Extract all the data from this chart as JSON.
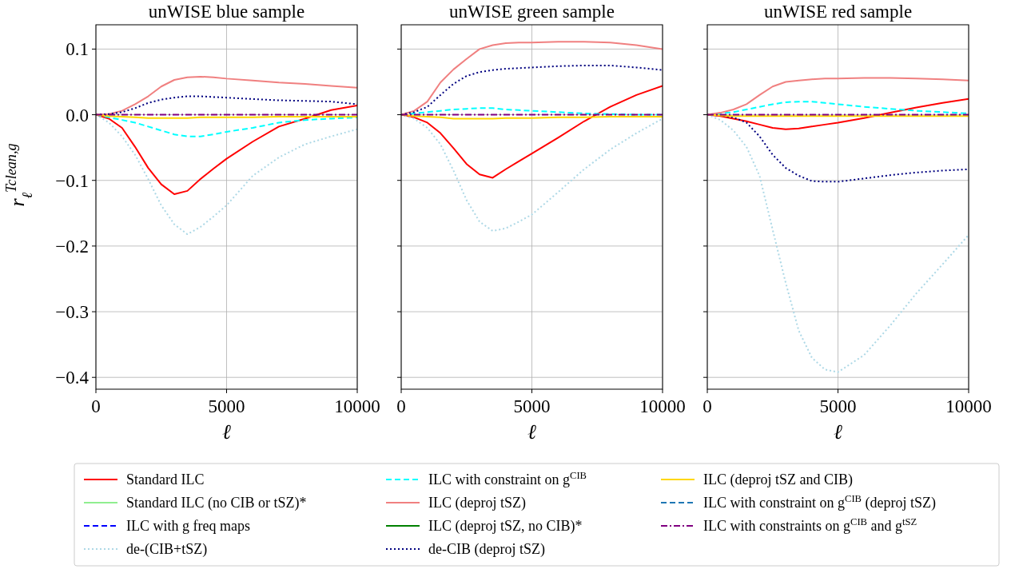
{
  "chart_data": [
    {
      "type": "line",
      "title": "unWISE blue sample",
      "xlabel": "ℓ",
      "ylabel": "r$_{ℓ}$$^{Tclean,g}$",
      "legend": "bottom",
      "grid": true,
      "xlim": [
        0,
        10000
      ],
      "xticks": [
        0,
        5000,
        10000
      ],
      "ylim": [
        -0.418,
        0.137
      ],
      "yticks": [
        {
          "value": -0.4,
          "label": "−0.4"
        },
        {
          "value": -0.3,
          "label": "−0.3"
        },
        {
          "value": -0.2,
          "label": "−0.2"
        },
        {
          "value": -0.1,
          "label": "−0.1"
        },
        {
          "value": 0,
          "label": "0.0"
        },
        {
          "value": 0.1,
          "label": "0.1"
        }
      ],
      "x": [
        0,
        500,
        1000,
        1500,
        2000,
        2500,
        3000,
        3500,
        4000,
        4500,
        5000,
        6000,
        7000,
        8000,
        9000,
        10000
      ],
      "series": [
        {
          "name": "Standard ILC",
          "color": "#ff0000",
          "line_style": "solid",
          "values": [
            0,
            -0.006,
            -0.02,
            -0.049,
            -0.081,
            -0.106,
            -0.121,
            -0.116,
            -0.098,
            -0.082,
            -0.067,
            -0.041,
            -0.018,
            -0.006,
            0.007,
            0.014
          ]
        },
        {
          "name": "Standard ILC (no CIB or tSZ)*",
          "color": "#90ee90",
          "line_style": "solid",
          "values": [
            null,
            null,
            null,
            null,
            null,
            null,
            null,
            null,
            null,
            null,
            null,
            null,
            null,
            null,
            null,
            null
          ]
        },
        {
          "name": "ILC with g freq maps",
          "color": "#0000ff",
          "line_style": "dashed",
          "values": [
            null,
            null,
            null,
            null,
            null,
            null,
            null,
            null,
            null,
            null,
            null,
            null,
            null,
            null,
            null,
            null
          ]
        },
        {
          "name": "de-(CIB+tSZ)",
          "color": "#add8e6",
          "line_style": "dotted",
          "values": [
            0,
            -0.012,
            -0.033,
            -0.061,
            -0.098,
            -0.138,
            -0.167,
            -0.182,
            -0.171,
            -0.155,
            -0.138,
            -0.093,
            -0.065,
            -0.045,
            -0.033,
            -0.022
          ]
        },
        {
          "name": "ILC with constraint on g$^{CIB}$",
          "color": "#00ffff",
          "line_style": "dashed",
          "values": [
            0,
            -0.004,
            -0.008,
            -0.012,
            -0.018,
            -0.024,
            -0.03,
            -0.033,
            -0.033,
            -0.03,
            -0.026,
            -0.02,
            -0.012,
            -0.008,
            -0.006,
            -0.004
          ]
        },
        {
          "name": "ILC (deproj tSZ)",
          "color": "#f08080",
          "line_style": "solid",
          "values": [
            0,
            0.001,
            0.006,
            0.016,
            0.028,
            0.043,
            0.053,
            0.057,
            0.058,
            0.057,
            0.055,
            0.052,
            0.049,
            0.047,
            0.044,
            0.041
          ]
        },
        {
          "name": "ILC (deproj tSZ, no CIB)*",
          "color": "#008000",
          "line_style": "solid",
          "values": [
            null,
            null,
            null,
            null,
            null,
            null,
            null,
            null,
            null,
            null,
            null,
            null,
            null,
            null,
            null,
            null
          ]
        },
        {
          "name": "de-CIB (deproj tSZ)",
          "color": "#000080",
          "line_style": "dotted",
          "values": [
            0,
            0.001,
            0.004,
            0.01,
            0.018,
            0.023,
            0.026,
            0.028,
            0.028,
            0.027,
            0.026,
            0.024,
            0.022,
            0.021,
            0.02,
            0.016
          ]
        },
        {
          "name": "ILC (deproj tSZ and CIB)",
          "color": "#ffd700",
          "line_style": "solid",
          "values": [
            0,
            -0.002,
            -0.003,
            -0.004,
            -0.005,
            -0.005,
            -0.005,
            -0.005,
            -0.004,
            -0.004,
            -0.004,
            -0.004,
            -0.003,
            -0.003,
            -0.003,
            -0.003
          ]
        },
        {
          "name": "ILC with constraint on g$^{CIB}$ (deproj tSZ)",
          "color": "#1f77b4",
          "line_style": "dashed",
          "values": [
            null,
            null,
            null,
            null,
            null,
            null,
            null,
            null,
            null,
            null,
            null,
            null,
            null,
            null,
            null,
            null
          ]
        },
        {
          "name": "ILC with constraints on g$^{CIB}$ and g$^{tSZ}$",
          "color": "#800080",
          "line_style": "dashdot",
          "values": [
            0,
            0,
            0,
            0,
            0,
            0,
            0,
            0,
            0,
            0,
            0,
            0,
            0,
            0,
            0,
            0
          ]
        }
      ]
    },
    {
      "type": "line",
      "title": "unWISE green sample",
      "xlabel": "ℓ",
      "grid": true,
      "tick_labels": "x",
      "xlim": [
        0,
        10000
      ],
      "xticks": [
        0,
        5000,
        10000
      ],
      "ylim": [
        -0.418,
        0.137
      ],
      "yticks": [
        -0.4,
        -0.3,
        -0.2,
        -0.1,
        0,
        0.1
      ],
      "x": [
        0,
        500,
        1000,
        1500,
        2000,
        2500,
        3000,
        3500,
        4000,
        4500,
        5000,
        6000,
        7000,
        8000,
        9000,
        10000
      ],
      "series": [
        {
          "color": "#ff0000",
          "line_style": "solid",
          "values": [
            0,
            -0.004,
            -0.012,
            -0.028,
            -0.051,
            -0.075,
            -0.091,
            -0.096,
            -0.083,
            -0.071,
            -0.059,
            -0.035,
            -0.01,
            0.012,
            0.03,
            0.044
          ]
        },
        {
          "color": "#90ee90",
          "line_style": "solid",
          "values": [
            null,
            null,
            null,
            null,
            null,
            null,
            null,
            null,
            null,
            null,
            null,
            null,
            null,
            null,
            null,
            null
          ]
        },
        {
          "color": "#0000ff",
          "line_style": "dashed",
          "values": [
            null,
            null,
            null,
            null,
            null,
            null,
            null,
            null,
            null,
            null,
            null,
            null,
            null,
            null,
            null,
            null
          ]
        },
        {
          "color": "#add8e6",
          "line_style": "dotted",
          "values": [
            0,
            -0.006,
            -0.02,
            -0.045,
            -0.085,
            -0.13,
            -0.163,
            -0.177,
            -0.173,
            -0.163,
            -0.152,
            -0.118,
            -0.083,
            -0.053,
            -0.028,
            -0.006
          ]
        },
        {
          "color": "#00ffff",
          "line_style": "dashed",
          "values": [
            0,
            0.002,
            0.004,
            0.006,
            0.008,
            0.009,
            0.01,
            0.01,
            0.008,
            0.007,
            0.006,
            0.004,
            0.002,
            0.001,
            0,
            0
          ]
        },
        {
          "color": "#f08080",
          "line_style": "solid",
          "values": [
            0,
            0.006,
            0.02,
            0.049,
            0.069,
            0.085,
            0.1,
            0.106,
            0.109,
            0.11,
            0.11,
            0.111,
            0.111,
            0.11,
            0.106,
            0.1
          ]
        },
        {
          "color": "#008000",
          "line_style": "solid",
          "values": [
            null,
            null,
            null,
            null,
            null,
            null,
            null,
            null,
            null,
            null,
            null,
            null,
            null,
            null,
            null,
            null
          ]
        },
        {
          "color": "#000080",
          "line_style": "dotted",
          "values": [
            0,
            0.004,
            0.012,
            0.03,
            0.047,
            0.059,
            0.065,
            0.068,
            0.07,
            0.071,
            0.072,
            0.074,
            0.075,
            0.075,
            0.072,
            0.068
          ]
        },
        {
          "color": "#ffd700",
          "line_style": "solid",
          "values": [
            0,
            -0.002,
            -0.003,
            -0.004,
            -0.006,
            -0.006,
            -0.006,
            -0.006,
            -0.005,
            -0.005,
            -0.005,
            -0.004,
            -0.004,
            -0.003,
            -0.003,
            -0.003
          ]
        },
        {
          "color": "#1f77b4",
          "line_style": "dashed",
          "values": [
            null,
            null,
            null,
            null,
            null,
            null,
            null,
            null,
            null,
            null,
            null,
            null,
            null,
            null,
            null,
            null
          ]
        },
        {
          "color": "#800080",
          "line_style": "dashdot",
          "values": [
            0,
            0,
            0,
            0,
            0,
            0,
            0,
            0,
            0,
            0,
            0,
            0,
            0,
            0,
            0,
            0
          ]
        }
      ]
    },
    {
      "type": "line",
      "title": "unWISE red sample",
      "xlabel": "ℓ",
      "grid": true,
      "tick_labels": "x",
      "xlim": [
        0,
        10000
      ],
      "xticks": [
        0,
        5000,
        10000
      ],
      "ylim": [
        -0.418,
        0.137
      ],
      "yticks": [
        -0.4,
        -0.3,
        -0.2,
        -0.1,
        0,
        0.1
      ],
      "x": [
        0,
        500,
        1000,
        1500,
        2000,
        2500,
        3000,
        3500,
        4000,
        4500,
        5000,
        6000,
        7000,
        8000,
        9000,
        10000
      ],
      "series": [
        {
          "color": "#ff0000",
          "line_style": "solid",
          "values": [
            0,
            -0.002,
            -0.006,
            -0.01,
            -0.015,
            -0.02,
            -0.022,
            -0.021,
            -0.018,
            -0.015,
            -0.012,
            -0.005,
            0.003,
            0.011,
            0.018,
            0.024
          ]
        },
        {
          "color": "#90ee90",
          "line_style": "solid",
          "values": [
            null,
            null,
            null,
            null,
            null,
            null,
            null,
            null,
            null,
            null,
            null,
            null,
            null,
            null,
            null,
            null
          ]
        },
        {
          "color": "#0000ff",
          "line_style": "dashed",
          "values": [
            null,
            null,
            null,
            null,
            null,
            null,
            null,
            null,
            null,
            null,
            null,
            null,
            null,
            null,
            null,
            null
          ]
        },
        {
          "color": "#add8e6",
          "line_style": "dotted",
          "values": [
            0,
            -0.008,
            -0.024,
            -0.049,
            -0.093,
            -0.175,
            -0.256,
            -0.329,
            -0.37,
            -0.388,
            -0.392,
            -0.366,
            -0.321,
            -0.272,
            -0.228,
            -0.183
          ]
        },
        {
          "color": "#00ffff",
          "line_style": "dashed",
          "values": [
            0,
            0.002,
            0.004,
            0.008,
            0.012,
            0.016,
            0.019,
            0.02,
            0.02,
            0.018,
            0.016,
            0.012,
            0.009,
            0.006,
            0.004,
            0.002
          ]
        },
        {
          "color": "#f08080",
          "line_style": "solid",
          "values": [
            0,
            0.003,
            0.008,
            0.016,
            0.03,
            0.043,
            0.05,
            0.052,
            0.054,
            0.055,
            0.055,
            0.056,
            0.056,
            0.055,
            0.054,
            0.052
          ]
        },
        {
          "color": "#008000",
          "line_style": "solid",
          "values": [
            null,
            null,
            null,
            null,
            null,
            null,
            null,
            null,
            null,
            null,
            null,
            null,
            null,
            null,
            null,
            null
          ]
        },
        {
          "color": "#000080",
          "line_style": "dotted",
          "values": [
            0,
            -0.001,
            -0.004,
            -0.012,
            -0.033,
            -0.061,
            -0.081,
            -0.093,
            -0.101,
            -0.102,
            -0.102,
            -0.097,
            -0.092,
            -0.088,
            -0.085,
            -0.083
          ]
        },
        {
          "color": "#ffd700",
          "line_style": "solid",
          "values": [
            0,
            -0.001,
            -0.002,
            -0.002,
            -0.002,
            -0.002,
            -0.002,
            -0.002,
            -0.002,
            -0.002,
            -0.002,
            -0.002,
            -0.002,
            -0.002,
            -0.002,
            -0.002
          ]
        },
        {
          "color": "#1f77b4",
          "line_style": "dashed",
          "values": [
            null,
            null,
            null,
            null,
            null,
            null,
            null,
            null,
            null,
            null,
            null,
            null,
            null,
            null,
            null,
            null
          ]
        },
        {
          "color": "#800080",
          "line_style": "dashdot",
          "values": [
            0,
            0,
            0,
            0,
            0,
            0,
            0,
            0,
            0,
            0,
            0,
            0,
            0,
            0,
            0,
            0
          ]
        }
      ]
    }
  ]
}
